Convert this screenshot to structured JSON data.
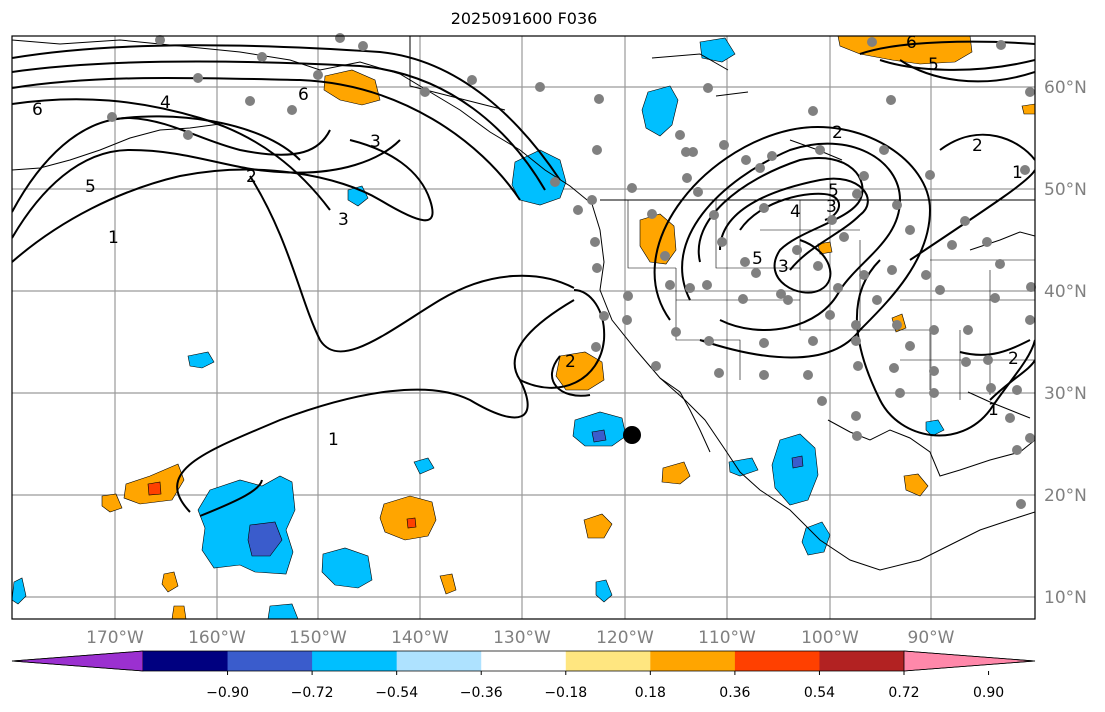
{
  "title": "2025091600 F036",
  "lon_ticks": [
    "170°W",
    "160°W",
    "150°W",
    "140°W",
    "130°W",
    "120°W",
    "110°W",
    "100°W",
    "90°W"
  ],
  "lat_ticks": [
    "60°N",
    "50°N",
    "40°N",
    "30°N",
    "20°N",
    "10°N"
  ],
  "colorbar": {
    "labels": [
      "−0.90",
      "−0.72",
      "−0.54",
      "−0.36",
      "−0.18",
      "0.18",
      "0.36",
      "0.54",
      "0.72",
      "0.90"
    ],
    "colors": [
      "#9b30d0",
      "#000080",
      "#3a5ccc",
      "#00bfff",
      "#aee2ff",
      "#ffffff",
      "#ffe680",
      "#ffa500",
      "#ff4000",
      "#b22222",
      "#ff88aa"
    ]
  },
  "contour_labels": [
    "6",
    "4",
    "5",
    "6",
    "3",
    "2",
    "1",
    "3",
    "2",
    "3",
    "2",
    "1",
    "3",
    "5",
    "4",
    "5",
    "1",
    "2",
    "1",
    "2",
    "5",
    "6"
  ],
  "marker": {
    "color": "#000000",
    "label": "storm center"
  }
}
